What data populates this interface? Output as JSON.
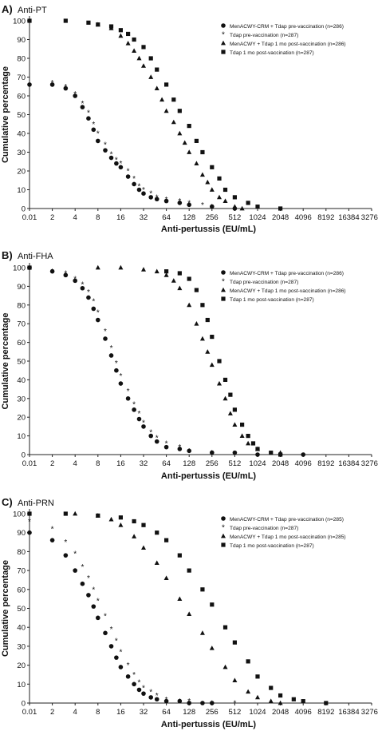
{
  "chart_data": [
    {
      "type": "scatter",
      "panel_letter": "A)",
      "title": "Anti-PT",
      "xlabel": "Anti-pertussis (EU/mL)",
      "ylabel": "Cumulative percentage",
      "x_scale": "log2",
      "x_ticks": [
        "0.01",
        "2",
        "4",
        "8",
        "16",
        "32",
        "64",
        "128",
        "256",
        "512",
        "1024",
        "2048",
        "4096",
        "8192",
        "16384",
        "32768"
      ],
      "y_ticks": [
        "0",
        "10",
        "20",
        "30",
        "40",
        "50",
        "60",
        "70",
        "80",
        "90",
        "100"
      ],
      "ylim": [
        0,
        100
      ],
      "legend_position": "top-right",
      "series": [
        {
          "name": "MenACWY-CRM + Tdap pre-vaccination (n=286)",
          "marker": "circle",
          "x": [
            0.01,
            2,
            3,
            4,
            5,
            6,
            7,
            8,
            10,
            12,
            14,
            16,
            20,
            24,
            28,
            32,
            40,
            48,
            64,
            96,
            128,
            256,
            512
          ],
          "y": [
            66,
            66,
            64,
            60,
            54,
            48,
            42,
            36,
            31,
            27,
            24,
            22,
            17,
            13,
            10,
            8,
            6,
            5,
            4,
            3,
            2,
            1,
            0
          ]
        },
        {
          "name": "Tdap pre-vaccination (n=287)",
          "marker": "star",
          "x": [
            2,
            3,
            4,
            5,
            6,
            7,
            8,
            10,
            12,
            14,
            16,
            20,
            24,
            28,
            32,
            40,
            48,
            64,
            96,
            128,
            192,
            256,
            512
          ],
          "y": [
            67,
            65,
            61,
            56,
            51,
            45,
            40,
            34,
            29,
            26,
            24,
            20,
            16,
            12,
            10,
            8,
            6,
            5,
            4,
            3,
            2,
            1,
            0
          ]
        },
        {
          "name": "MenACWY + Tdap 1 mo post-vaccination (n=286)",
          "marker": "triangle",
          "x": [
            8,
            12,
            16,
            20,
            24,
            28,
            32,
            40,
            48,
            56,
            64,
            80,
            96,
            112,
            128,
            160,
            192,
            224,
            256,
            320,
            384,
            512,
            640
          ],
          "y": [
            98,
            96,
            92,
            88,
            84,
            80,
            76,
            70,
            64,
            58,
            52,
            46,
            40,
            35,
            30,
            24,
            18,
            14,
            10,
            6,
            4,
            1,
            0
          ]
        },
        {
          "name": "Tdap 1 mo post-vaccination (n=287)",
          "marker": "square",
          "x": [
            0.01,
            3,
            6,
            8,
            12,
            16,
            20,
            24,
            32,
            40,
            48,
            64,
            80,
            96,
            128,
            160,
            192,
            256,
            320,
            384,
            512,
            768,
            1024,
            2048
          ],
          "y": [
            100,
            100,
            99,
            98,
            97,
            95,
            93,
            90,
            86,
            80,
            74,
            66,
            58,
            52,
            44,
            36,
            30,
            22,
            16,
            10,
            6,
            3,
            1,
            0
          ]
        }
      ]
    },
    {
      "type": "scatter",
      "panel_letter": "B)",
      "title": "Anti-FHA",
      "xlabel": "Anti-pertussis (EU/mL)",
      "ylabel": "Cumulative percentage",
      "x_scale": "log2",
      "x_ticks": [
        "0.01",
        "2",
        "4",
        "8",
        "16",
        "32",
        "64",
        "128",
        "256",
        "512",
        "1024",
        "2048",
        "4096",
        "8192",
        "16384",
        "32768"
      ],
      "y_ticks": [
        "0",
        "10",
        "20",
        "30",
        "40",
        "50",
        "60",
        "70",
        "80",
        "90",
        "100"
      ],
      "ylim": [
        0,
        100
      ],
      "legend_position": "top-right",
      "series": [
        {
          "name": "MenACWY-CRM + Tdap pre-vaccination (n=286)",
          "marker": "circle",
          "x": [
            0.01,
            2,
            3,
            4,
            5,
            6,
            7,
            8,
            10,
            12,
            14,
            16,
            20,
            24,
            28,
            32,
            40,
            48,
            64,
            96,
            128,
            256,
            512,
            1024,
            2048,
            4096
          ],
          "y": [
            100,
            98,
            96,
            93,
            89,
            84,
            78,
            72,
            62,
            53,
            45,
            38,
            30,
            24,
            19,
            15,
            10,
            7,
            4,
            3,
            2,
            1,
            1,
            0,
            0,
            0
          ]
        },
        {
          "name": "Tdap pre-vaccination (n=287)",
          "marker": "star",
          "x": [
            2,
            3,
            4,
            5,
            6,
            7,
            8,
            10,
            12,
            14,
            16,
            20,
            24,
            28,
            32,
            40,
            48,
            64,
            96,
            128,
            256
          ],
          "y": [
            98,
            97,
            94,
            91,
            87,
            82,
            76,
            66,
            57,
            49,
            42,
            34,
            27,
            22,
            17,
            12,
            9,
            6,
            4,
            2,
            1
          ]
        },
        {
          "name": "MenACWY + Tdap 1 mo post-vaccination (n=286)",
          "marker": "triangle",
          "x": [
            8,
            16,
            32,
            48,
            64,
            80,
            96,
            128,
            160,
            192,
            224,
            256,
            320,
            384,
            448,
            512,
            640,
            768,
            1024,
            2048
          ],
          "y": [
            100,
            100,
            99,
            98,
            96,
            93,
            89,
            80,
            70,
            62,
            55,
            48,
            38,
            30,
            22,
            16,
            10,
            6,
            3,
            1
          ]
        },
        {
          "name": "Tdap 1 mo post-vaccination (n=287)",
          "marker": "square",
          "x": [
            0.01,
            64,
            96,
            128,
            160,
            192,
            224,
            256,
            320,
            384,
            448,
            512,
            640,
            768,
            896,
            1024,
            1536,
            2048
          ],
          "y": [
            100,
            98,
            97,
            94,
            88,
            80,
            72,
            63,
            50,
            40,
            32,
            24,
            16,
            10,
            6,
            3,
            1,
            0
          ]
        }
      ]
    },
    {
      "type": "scatter",
      "panel_letter": "C)",
      "title": "Anti-PRN",
      "xlabel": "Anti-pertussis (EU/mL)",
      "ylabel": "Cumulative percentage",
      "x_scale": "log2",
      "x_ticks": [
        "0.01",
        "2",
        "4",
        "8",
        "16",
        "32",
        "64",
        "128",
        "256",
        "512",
        "1024",
        "2048",
        "4096",
        "8192",
        "16384",
        "32768"
      ],
      "y_ticks": [
        "0",
        "10",
        "20",
        "30",
        "40",
        "50",
        "60",
        "70",
        "80",
        "90",
        "100"
      ],
      "ylim": [
        0,
        100
      ],
      "legend_position": "top-right",
      "series": [
        {
          "name": "MenACWY-CRM + Tdap pre-vaccination (n=285)",
          "marker": "circle",
          "x": [
            0.01,
            2,
            3,
            4,
            5,
            6,
            7,
            8,
            10,
            12,
            14,
            16,
            20,
            24,
            28,
            32,
            40,
            48,
            64,
            96,
            128,
            192,
            256
          ],
          "y": [
            90,
            86,
            78,
            70,
            63,
            57,
            51,
            45,
            37,
            30,
            24,
            19,
            14,
            10,
            7,
            5,
            3,
            2,
            1,
            1,
            0,
            0,
            0
          ]
        },
        {
          "name": "Tdap pre-vaccination (n=287)",
          "marker": "star",
          "x": [
            0.01,
            2,
            3,
            4,
            5,
            6,
            7,
            8,
            10,
            12,
            14,
            16,
            20,
            24,
            28,
            32,
            40,
            48,
            64,
            96,
            128,
            256,
            512
          ],
          "y": [
            96,
            92,
            85,
            79,
            72,
            66,
            60,
            54,
            46,
            39,
            33,
            27,
            20,
            15,
            11,
            8,
            6,
            4,
            2,
            1,
            1,
            0,
            0
          ]
        },
        {
          "name": "MenACWY + Tdap 1 mo post-vaccination (n=285)",
          "marker": "triangle",
          "x": [
            4,
            8,
            12,
            16,
            24,
            32,
            48,
            64,
            96,
            128,
            192,
            256,
            384,
            512,
            768,
            1024,
            1536,
            2048
          ],
          "y": [
            100,
            99,
            97,
            94,
            88,
            82,
            74,
            66,
            55,
            47,
            37,
            29,
            19,
            12,
            6,
            3,
            1,
            0
          ]
        },
        {
          "name": "Tdap 1 mo post-vaccination (n=287)",
          "marker": "square",
          "x": [
            0.01,
            3,
            8,
            16,
            24,
            32,
            48,
            64,
            96,
            128,
            192,
            256,
            384,
            512,
            768,
            1024,
            1536,
            2048,
            3072,
            4096,
            8192
          ],
          "y": [
            100,
            100,
            99,
            98,
            96,
            94,
            90,
            86,
            78,
            70,
            60,
            52,
            40,
            32,
            22,
            14,
            8,
            4,
            2,
            1,
            0
          ]
        }
      ]
    }
  ]
}
